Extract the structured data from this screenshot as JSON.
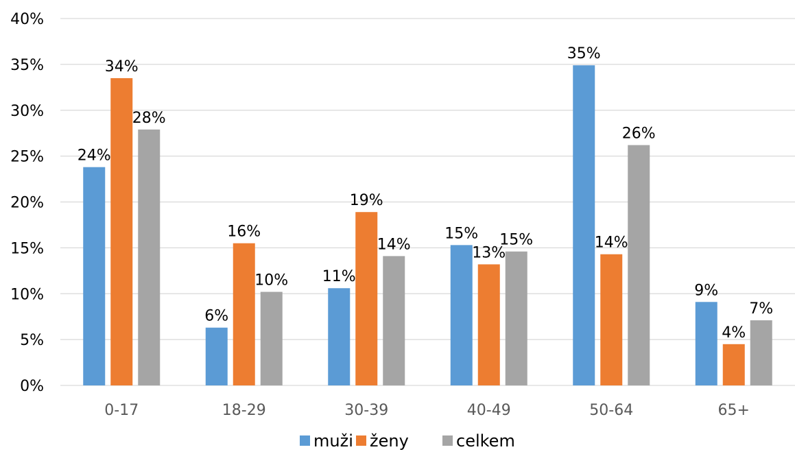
{
  "chart_data": {
    "type": "bar",
    "categories": [
      "0-17",
      "18-29",
      "30-39",
      "40-49",
      "50-64",
      "65+"
    ],
    "series": [
      {
        "name": "muži",
        "color": "#5b9bd5",
        "values": [
          23.8,
          6.3,
          10.6,
          15.3,
          34.9,
          9.1
        ],
        "labels": [
          "24%",
          "6%",
          "11%",
          "15%",
          "35%",
          "9%"
        ]
      },
      {
        "name": "ženy",
        "color": "#ed7d31",
        "values": [
          33.5,
          15.5,
          18.9,
          13.2,
          14.3,
          4.5
        ],
        "labels": [
          "34%",
          "16%",
          "19%",
          "13%",
          "14%",
          "4%"
        ]
      },
      {
        "name": "celkem",
        "color": "#a5a5a5",
        "values": [
          27.9,
          10.2,
          14.1,
          14.6,
          26.2,
          7.1
        ],
        "labels": [
          "28%",
          "10%",
          "14%",
          "15%",
          "26%",
          "7%"
        ]
      }
    ],
    "y_ticks": [
      "0%",
      "5%",
      "10%",
      "15%",
      "20%",
      "25%",
      "30%",
      "35%",
      "40%"
    ],
    "ylim": [
      0,
      40
    ],
    "grid": true,
    "legend_position": "bottom",
    "title": "",
    "xlabel": "",
    "ylabel": ""
  }
}
